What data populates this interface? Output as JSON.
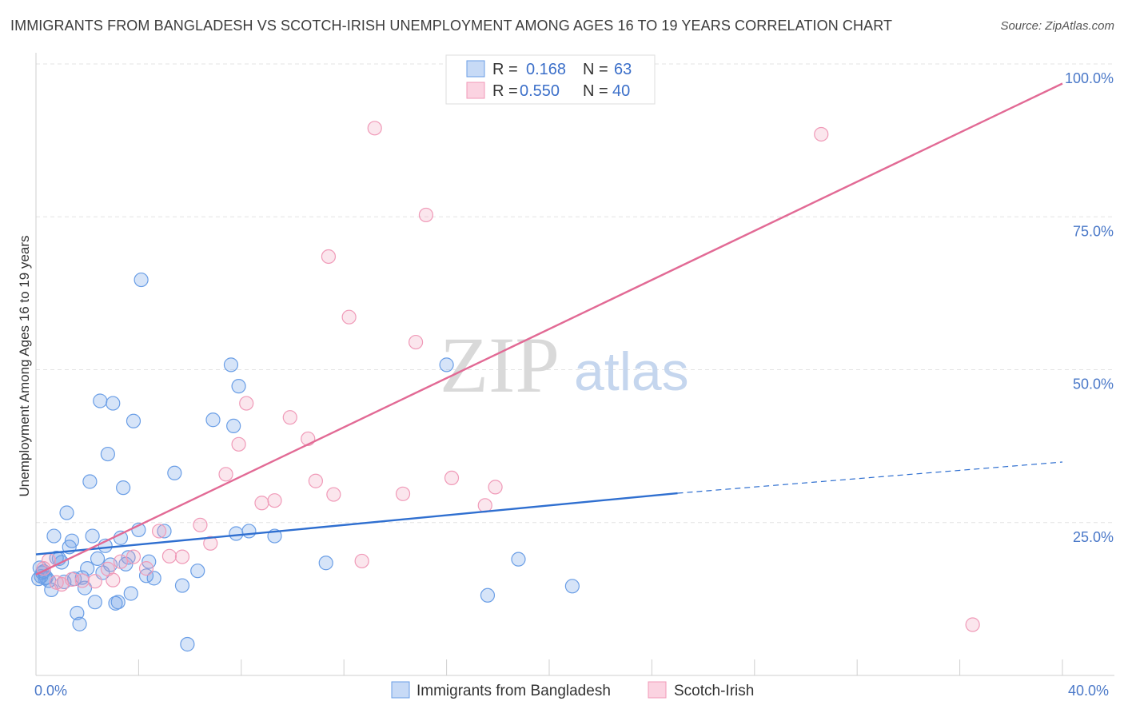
{
  "title": "IMMIGRANTS FROM BANGLADESH VS SCOTCH-IRISH UNEMPLOYMENT AMONG AGES 16 TO 19 YEARS CORRELATION CHART",
  "source": "Source: ZipAtlas.com",
  "watermark": {
    "zip": "ZIP",
    "atlas": "atlas"
  },
  "legend_top": {
    "r_label": "R =",
    "n_label": "N =",
    "rows": [
      {
        "r": "0.168",
        "n": "63"
      },
      {
        "r": "0.550",
        "n": "40"
      }
    ]
  },
  "chart_data": {
    "type": "scatter",
    "ylabel": "Unemployment Among Ages 16 to 19 years",
    "xlim": [
      0,
      40
    ],
    "ylim": [
      0,
      100
    ],
    "x_tick_labels": [
      "0.0%",
      "40.0%"
    ],
    "y_ticks": [
      25,
      50,
      75,
      100
    ],
    "y_tick_labels": [
      "25.0%",
      "50.0%",
      "75.0%",
      "100.0%"
    ],
    "grid": true,
    "legend_position": "bottom",
    "series": [
      {
        "name": "Immigrants from Bangladesh",
        "color": "#6a9ee6",
        "line_color": "#2f6fd0",
        "trend": {
          "x0": 0,
          "y0": 19.8,
          "x1": 25,
          "y1": 29.8,
          "dash_to_x": 40,
          "dash_to_y": 34.9
        },
        "points": [
          [
            0.1,
            15.8
          ],
          [
            0.2,
            16.2
          ],
          [
            0.3,
            17.0
          ],
          [
            0.4,
            16.0
          ],
          [
            0.5,
            15.5
          ],
          [
            0.6,
            14.0
          ],
          [
            0.7,
            22.8
          ],
          [
            0.8,
            19.2
          ],
          [
            0.9,
            19.1
          ],
          [
            1.0,
            18.5
          ],
          [
            1.1,
            15.3
          ],
          [
            1.2,
            26.6
          ],
          [
            1.3,
            21.0
          ],
          [
            1.4,
            22.0
          ],
          [
            1.5,
            15.8
          ],
          [
            1.6,
            10.2
          ],
          [
            1.7,
            8.4
          ],
          [
            1.8,
            16.0
          ],
          [
            1.9,
            14.3
          ],
          [
            2.0,
            17.5
          ],
          [
            2.1,
            31.7
          ],
          [
            2.2,
            22.8
          ],
          [
            2.3,
            12.0
          ],
          [
            2.4,
            19.1
          ],
          [
            2.5,
            44.9
          ],
          [
            2.6,
            16.8
          ],
          [
            2.7,
            21.2
          ],
          [
            2.8,
            36.2
          ],
          [
            2.9,
            18.1
          ],
          [
            3.0,
            44.5
          ],
          [
            3.1,
            11.8
          ],
          [
            3.2,
            12.0
          ],
          [
            3.3,
            22.5
          ],
          [
            3.4,
            30.7
          ],
          [
            3.5,
            18.2
          ],
          [
            3.6,
            19.3
          ],
          [
            3.7,
            13.4
          ],
          [
            3.8,
            41.6
          ],
          [
            4.0,
            23.8
          ],
          [
            4.1,
            64.7
          ],
          [
            4.3,
            16.3
          ],
          [
            4.4,
            18.6
          ],
          [
            4.6,
            15.9
          ],
          [
            5.0,
            23.6
          ],
          [
            5.4,
            33.1
          ],
          [
            5.7,
            14.7
          ],
          [
            5.9,
            5.1
          ],
          [
            6.3,
            17.1
          ],
          [
            6.9,
            41.8
          ],
          [
            7.6,
            50.8
          ],
          [
            7.7,
            40.8
          ],
          [
            7.8,
            23.2
          ],
          [
            7.9,
            47.3
          ],
          [
            8.3,
            23.6
          ],
          [
            9.3,
            22.8
          ],
          [
            11.3,
            18.4
          ],
          [
            16.0,
            50.8
          ],
          [
            17.6,
            13.1
          ],
          [
            18.8,
            19.0
          ],
          [
            20.9,
            14.6
          ],
          [
            0.15,
            17.6
          ],
          [
            0.25,
            16.8
          ],
          [
            0.35,
            15.9
          ]
        ]
      },
      {
        "name": "Scotch-Irish",
        "color": "#f09ab8",
        "line_color": "#e26a95",
        "trend": {
          "x0": 0,
          "y0": 16.5,
          "x1": 40,
          "y1": 96.8
        },
        "points": [
          [
            0.3,
            17.5
          ],
          [
            0.5,
            18.8
          ],
          [
            0.8,
            15.2
          ],
          [
            1.0,
            14.9
          ],
          [
            1.4,
            15.7
          ],
          [
            1.8,
            15.5
          ],
          [
            2.3,
            15.4
          ],
          [
            2.8,
            17.4
          ],
          [
            3.0,
            15.6
          ],
          [
            3.3,
            18.6
          ],
          [
            3.8,
            19.4
          ],
          [
            4.3,
            17.5
          ],
          [
            4.8,
            23.6
          ],
          [
            5.2,
            19.5
          ],
          [
            5.7,
            19.4
          ],
          [
            6.4,
            24.6
          ],
          [
            6.8,
            21.6
          ],
          [
            7.4,
            32.9
          ],
          [
            7.9,
            37.8
          ],
          [
            8.2,
            44.5
          ],
          [
            8.8,
            28.2
          ],
          [
            9.3,
            28.6
          ],
          [
            9.9,
            42.2
          ],
          [
            10.6,
            38.7
          ],
          [
            10.9,
            31.8
          ],
          [
            11.4,
            68.5
          ],
          [
            11.6,
            29.6
          ],
          [
            12.2,
            58.6
          ],
          [
            12.7,
            18.7
          ],
          [
            13.2,
            89.5
          ],
          [
            14.3,
            29.7
          ],
          [
            14.8,
            54.5
          ],
          [
            15.2,
            75.3
          ],
          [
            16.2,
            32.3
          ],
          [
            16.6,
            99.8
          ],
          [
            17.5,
            27.8
          ],
          [
            17.9,
            30.8
          ],
          [
            21.8,
            99.7
          ],
          [
            30.6,
            88.5
          ],
          [
            36.5,
            8.3
          ]
        ]
      }
    ]
  }
}
